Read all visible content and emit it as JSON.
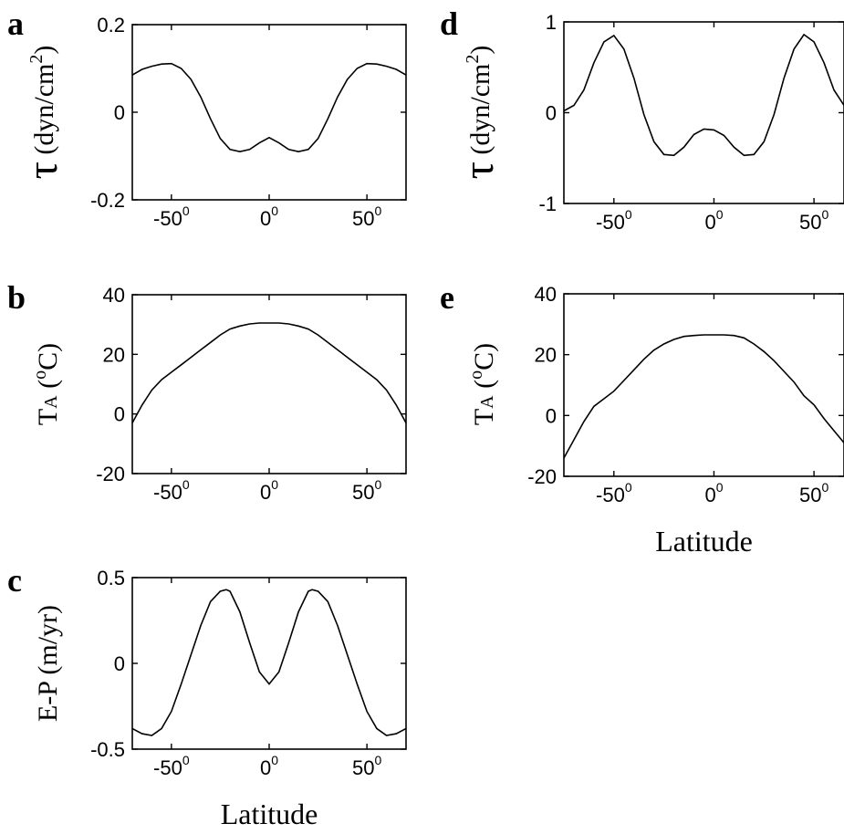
{
  "chart_data": [
    {
      "id": "a",
      "panel_label": "a",
      "type": "line",
      "ylabel": {
        "symbol": "τ",
        "units": "(dyn/cm",
        "exponent": "2",
        "close": ")"
      },
      "xlim": [
        -70,
        70
      ],
      "ylim": [
        -0.2,
        0.2
      ],
      "yticks": [
        {
          "value": -0.2,
          "label": "-0.2"
        },
        {
          "value": 0,
          "label": "0"
        },
        {
          "value": 0.2,
          "label": "0.2"
        }
      ],
      "xticks": [
        {
          "value": -50,
          "label": "-50",
          "sup": "0"
        },
        {
          "value": 0,
          "label": "0",
          "sup": "0"
        },
        {
          "value": 50,
          "label": "50",
          "sup": "0"
        }
      ],
      "x": [
        -70,
        -65,
        -60,
        -55,
        -50,
        -45,
        -40,
        -35,
        -30,
        -25,
        -20,
        -15,
        -10,
        -5,
        0,
        5,
        10,
        15,
        20,
        25,
        30,
        35,
        40,
        45,
        50,
        55,
        60,
        65,
        70
      ],
      "y": [
        0.085,
        0.098,
        0.105,
        0.11,
        0.111,
        0.1,
        0.075,
        0.035,
        -0.015,
        -0.06,
        -0.085,
        -0.09,
        -0.085,
        -0.07,
        -0.058,
        -0.07,
        -0.085,
        -0.09,
        -0.085,
        -0.06,
        -0.015,
        0.035,
        0.075,
        0.1,
        0.111,
        0.11,
        0.105,
        0.098,
        0.085
      ]
    },
    {
      "id": "b",
      "panel_label": "b",
      "type": "line",
      "ylabel": {
        "main": "T",
        "sub": "A",
        "units": " (",
        "deg": "o",
        "unit": "C)"
      },
      "xlim": [
        -70,
        70
      ],
      "ylim": [
        -20,
        40
      ],
      "yticks": [
        {
          "value": -20,
          "label": "-20"
        },
        {
          "value": 0,
          "label": "0"
        },
        {
          "value": 20,
          "label": "20"
        },
        {
          "value": 40,
          "label": "40"
        }
      ],
      "xticks": [
        {
          "value": -50,
          "label": "-50",
          "sup": "0"
        },
        {
          "value": 0,
          "label": "0",
          "sup": "0"
        },
        {
          "value": 50,
          "label": "50",
          "sup": "0"
        }
      ],
      "x": [
        -70,
        -65,
        -60,
        -55,
        -50,
        -45,
        -40,
        -35,
        -30,
        -25,
        -20,
        -15,
        -10,
        -5,
        0,
        5,
        10,
        15,
        20,
        25,
        30,
        35,
        40,
        45,
        50,
        55,
        60,
        65,
        70
      ],
      "y": [
        -3,
        3,
        8,
        11.5,
        14,
        16.5,
        19,
        21.5,
        24,
        26.5,
        28.5,
        29.5,
        30.2,
        30.5,
        30.5,
        30.5,
        30.2,
        29.5,
        28.5,
        26.5,
        24,
        21.5,
        19,
        16.5,
        14,
        11.5,
        8,
        3,
        -3
      ]
    },
    {
      "id": "c",
      "panel_label": "c",
      "type": "line",
      "ylabel": {
        "main": "E-P (m/yr)"
      },
      "xlabel": "Latitude",
      "xlim": [
        -70,
        70
      ],
      "ylim": [
        -0.5,
        0.5
      ],
      "yticks": [
        {
          "value": -0.5,
          "label": "-0.5"
        },
        {
          "value": 0,
          "label": "0"
        },
        {
          "value": 0.5,
          "label": "0.5"
        }
      ],
      "xticks": [
        {
          "value": -50,
          "label": "-50",
          "sup": "0"
        },
        {
          "value": 0,
          "label": "0",
          "sup": "0"
        },
        {
          "value": 50,
          "label": "50",
          "sup": "0"
        }
      ],
      "x": [
        -70,
        -65,
        -60,
        -55,
        -50,
        -45,
        -40,
        -35,
        -30,
        -25,
        -22,
        -20,
        -15,
        -10,
        -5,
        0,
        5,
        10,
        15,
        20,
        22,
        25,
        30,
        35,
        40,
        45,
        50,
        55,
        60,
        65,
        70
      ],
      "y": [
        -0.38,
        -0.41,
        -0.42,
        -0.38,
        -0.28,
        -0.12,
        0.05,
        0.22,
        0.36,
        0.42,
        0.43,
        0.42,
        0.3,
        0.12,
        -0.05,
        -0.12,
        -0.05,
        0.12,
        0.3,
        0.42,
        0.43,
        0.42,
        0.36,
        0.22,
        0.05,
        -0.12,
        -0.28,
        -0.38,
        -0.42,
        -0.41,
        -0.38
      ]
    },
    {
      "id": "d",
      "panel_label": "d",
      "type": "line",
      "ylabel": {
        "symbol": "τ",
        "units": "(dyn/cm",
        "exponent": "2",
        "close": ")"
      },
      "xlim": [
        -75,
        65
      ],
      "ylim": [
        -1,
        1
      ],
      "yticks": [
        {
          "value": -1,
          "label": "-1"
        },
        {
          "value": 0,
          "label": "0"
        },
        {
          "value": 1,
          "label": "1"
        }
      ],
      "xticks": [
        {
          "value": -50,
          "label": "-50",
          "sup": "0"
        },
        {
          "value": 0,
          "label": "0",
          "sup": "0"
        },
        {
          "value": 50,
          "label": "50",
          "sup": "0"
        }
      ],
      "x": [
        -75,
        -70,
        -65,
        -60,
        -55,
        -50,
        -45,
        -40,
        -35,
        -30,
        -25,
        -20,
        -15,
        -10,
        -5,
        0,
        5,
        10,
        15,
        20,
        25,
        30,
        35,
        40,
        45,
        50,
        55,
        60,
        65
      ],
      "y": [
        0.02,
        0.08,
        0.25,
        0.55,
        0.78,
        0.85,
        0.7,
        0.38,
        -0.02,
        -0.32,
        -0.46,
        -0.47,
        -0.38,
        -0.24,
        -0.18,
        -0.19,
        -0.25,
        -0.38,
        -0.47,
        -0.46,
        -0.32,
        -0.02,
        0.38,
        0.7,
        0.86,
        0.78,
        0.55,
        0.25,
        0.08
      ]
    },
    {
      "id": "e",
      "panel_label": "e",
      "type": "line",
      "ylabel": {
        "main": "T",
        "sub": "A",
        "units": " (",
        "deg": "o",
        "unit": "C)"
      },
      "xlabel": "Latitude",
      "xlim": [
        -75,
        65
      ],
      "ylim": [
        -20,
        40
      ],
      "yticks": [
        {
          "value": -20,
          "label": "-20"
        },
        {
          "value": 0,
          "label": "0"
        },
        {
          "value": 20,
          "label": "20"
        },
        {
          "value": 40,
          "label": "40"
        }
      ],
      "xticks": [
        {
          "value": -50,
          "label": "-50",
          "sup": "0"
        },
        {
          "value": 0,
          "label": "0",
          "sup": "0"
        },
        {
          "value": 50,
          "label": "50",
          "sup": "0"
        }
      ],
      "x": [
        -75,
        -70,
        -65,
        -60,
        -55,
        -50,
        -45,
        -40,
        -35,
        -30,
        -25,
        -20,
        -15,
        -10,
        -5,
        0,
        5,
        10,
        15,
        20,
        25,
        30,
        35,
        40,
        45,
        50,
        55,
        60,
        65
      ],
      "y": [
        -14,
        -8,
        -2,
        3,
        5.5,
        8,
        11.5,
        15,
        18.5,
        21.5,
        23.5,
        25,
        26,
        26.3,
        26.5,
        26.5,
        26.5,
        26.3,
        25.5,
        23.5,
        21,
        18,
        14.5,
        11,
        6.5,
        3.5,
        -1,
        -5,
        -9
      ]
    }
  ]
}
